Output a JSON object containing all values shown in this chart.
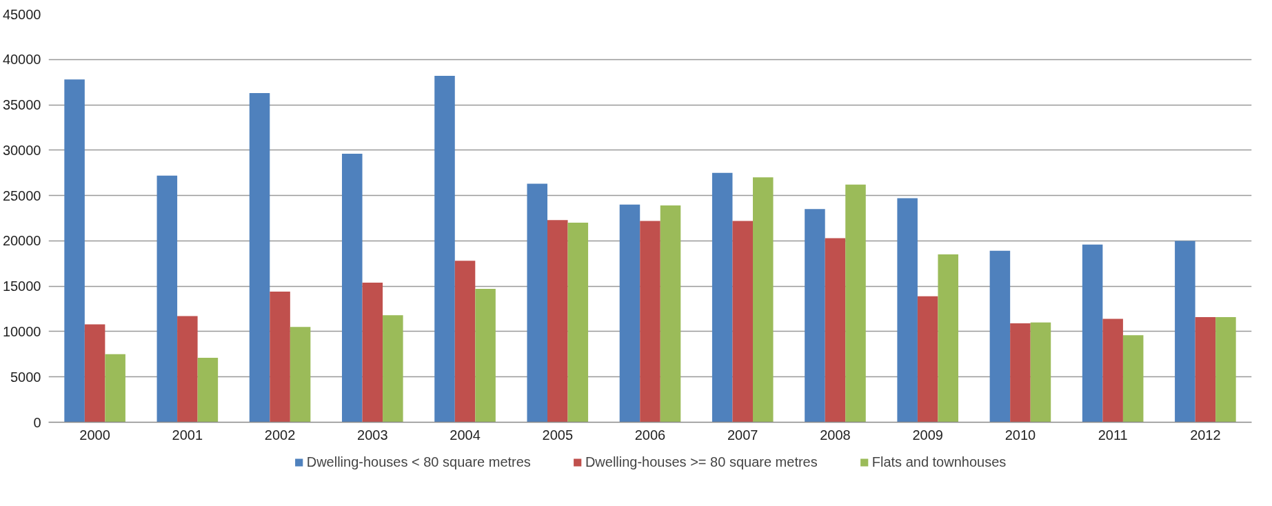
{
  "chart_data": {
    "type": "bar",
    "categories": [
      "2000",
      "2001",
      "2002",
      "2003",
      "2004",
      "2005",
      "2006",
      "2007",
      "2008",
      "2009",
      "2010",
      "2011",
      "2012"
    ],
    "series": [
      {
        "name": "Dwelling-houses < 80 square metres",
        "color": "#4f81bd",
        "values": [
          37800,
          27200,
          36300,
          29600,
          38200,
          26300,
          24000,
          27500,
          23500,
          24700,
          18900,
          19600,
          20000
        ]
      },
      {
        "name": "Dwelling-houses >= 80 square metres",
        "color": "#c0504d",
        "values": [
          10800,
          11700,
          14400,
          15400,
          17800,
          22300,
          22200,
          22200,
          20300,
          13900,
          10900,
          11400,
          11600
        ]
      },
      {
        "name": "Flats and townhouses",
        "color": "#9bbb59",
        "values": [
          7500,
          7100,
          10500,
          11800,
          14700,
          22000,
          23900,
          27000,
          26200,
          18500,
          11000,
          9600,
          11600
        ]
      }
    ],
    "ylim": [
      0,
      45000
    ],
    "yticks": [
      0,
      5000,
      10000,
      15000,
      20000,
      25000,
      30000,
      35000,
      40000,
      45000
    ],
    "grid": "y",
    "legend": "bottom"
  }
}
